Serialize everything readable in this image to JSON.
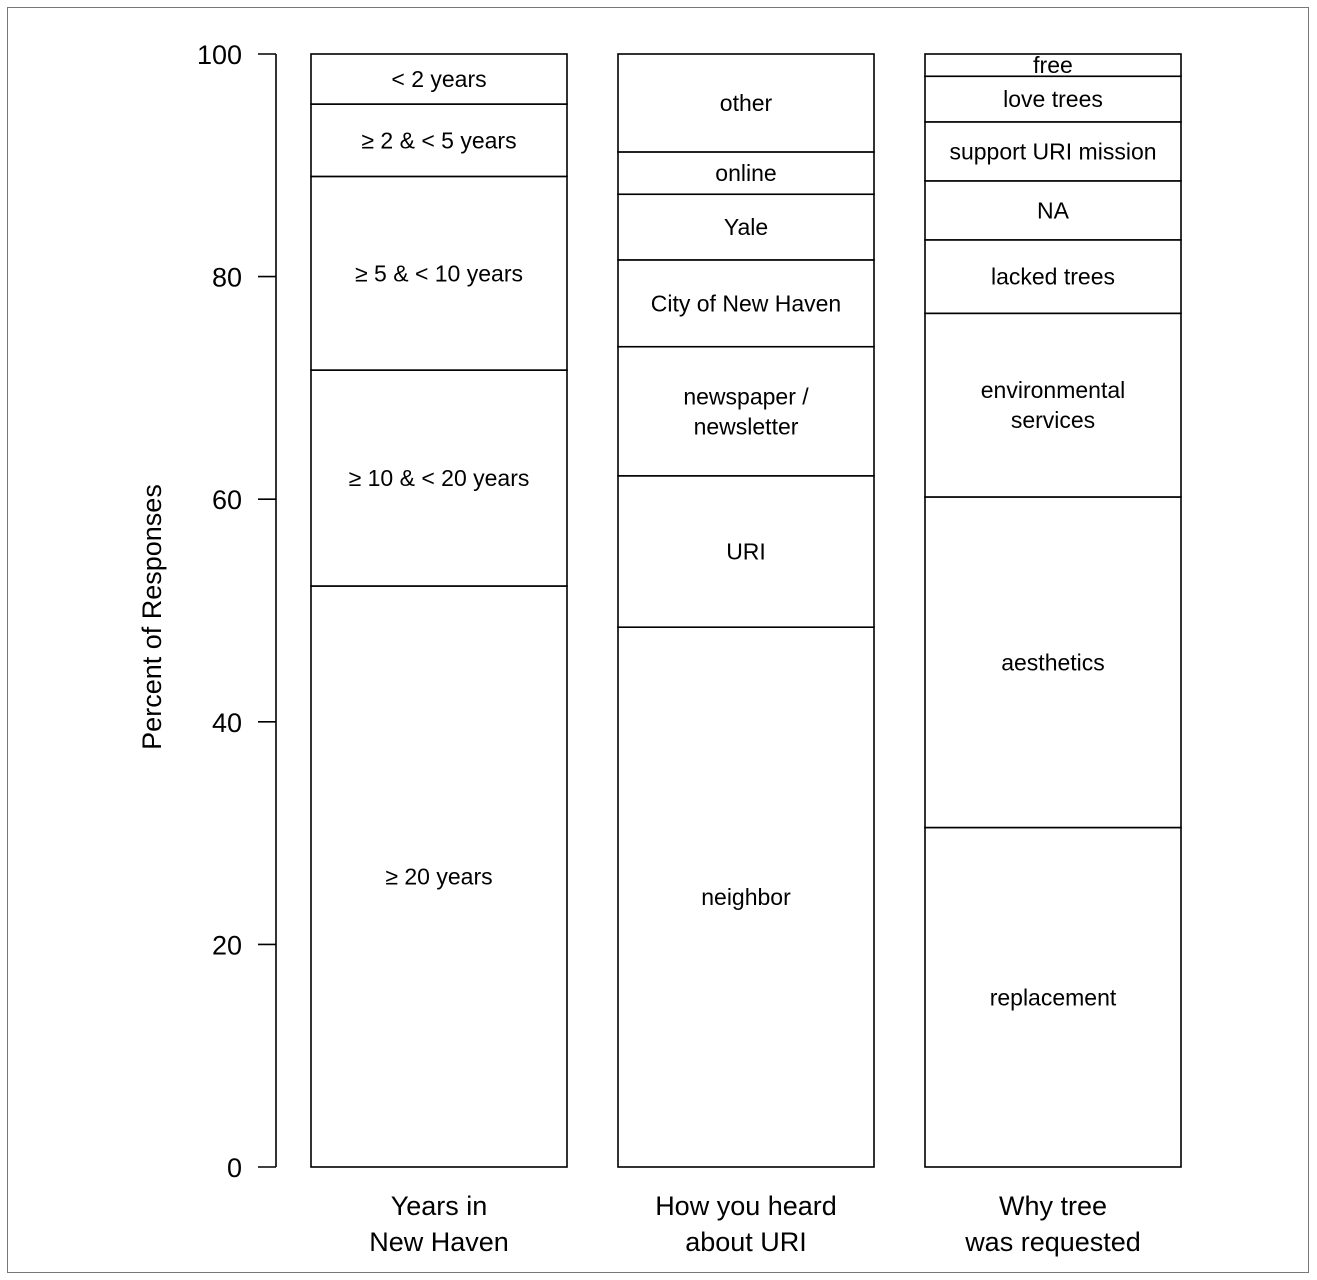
{
  "chart_data": {
    "type": "bar",
    "stacked": true,
    "ylabel": "Percent of Responses",
    "ylim": [
      0,
      100
    ],
    "yticks": [
      0,
      20,
      40,
      60,
      80,
      100
    ],
    "grid": false,
    "bars": [
      {
        "label": [
          "Years in",
          "New Haven"
        ],
        "segments": [
          {
            "label": [
              "≥ 20 years"
            ],
            "value": 52.2
          },
          {
            "label": [
              "≥ 10 & < 20 years"
            ],
            "value": 19.4
          },
          {
            "label": [
              "≥ 5 & < 10 years"
            ],
            "value": 17.4
          },
          {
            "label": [
              "≥ 2 & < 5 years"
            ],
            "value": 6.5
          },
          {
            "label": [
              "< 2 years"
            ],
            "value": 4.5
          }
        ]
      },
      {
        "label": [
          "How you heard",
          "about URI"
        ],
        "segments": [
          {
            "label": [
              "neighbor"
            ],
            "value": 48.5
          },
          {
            "label": [
              "URI"
            ],
            "value": 13.6
          },
          {
            "label": [
              "newspaper /",
              "newsletter"
            ],
            "value": 11.6
          },
          {
            "label": [
              "City of New Haven"
            ],
            "value": 7.8
          },
          {
            "label": [
              "Yale"
            ],
            "value": 5.9
          },
          {
            "label": [
              "online"
            ],
            "value": 3.8
          },
          {
            "label": [
              "other"
            ],
            "value": 8.8
          }
        ]
      },
      {
        "label": [
          "Why tree",
          "was requested"
        ],
        "segments": [
          {
            "label": [
              "replacement"
            ],
            "value": 30.5
          },
          {
            "label": [
              "aesthetics"
            ],
            "value": 29.7
          },
          {
            "label": [
              "environmental",
              "services"
            ],
            "value": 16.5
          },
          {
            "label": [
              "lacked trees"
            ],
            "value": 6.6
          },
          {
            "label": [
              "NA"
            ],
            "value": 5.3
          },
          {
            "label": [
              "support URI mission"
            ],
            "value": 5.3
          },
          {
            "label": [
              "love trees"
            ],
            "value": 4.1
          },
          {
            "label": [
              "free"
            ],
            "value": 2.0
          }
        ]
      }
    ]
  }
}
